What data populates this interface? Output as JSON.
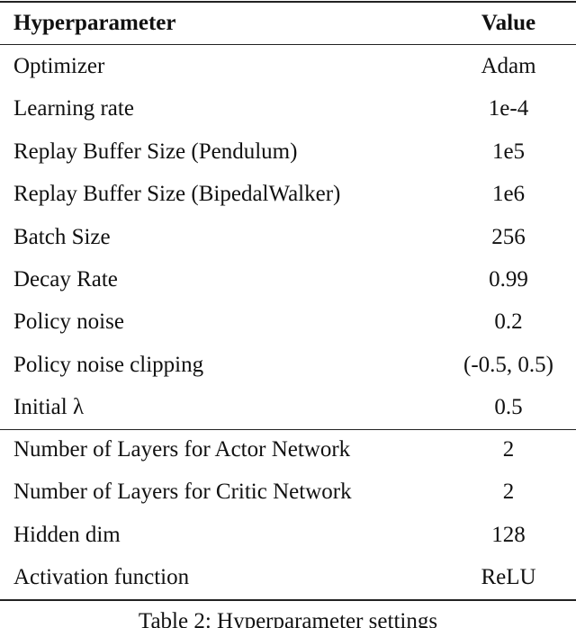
{
  "table": {
    "header": [
      "Hyperparameter",
      "Value"
    ],
    "groups": [
      [
        [
          "Optimizer",
          "Adam"
        ],
        [
          "Learning rate",
          "1e-4"
        ],
        [
          "Replay Buffer Size (Pendulum)",
          "1e5"
        ],
        [
          "Replay Buffer Size (BipedalWalker)",
          "1e6"
        ],
        [
          "Batch Size",
          "256"
        ],
        [
          "Decay Rate",
          "0.99"
        ],
        [
          "Policy noise",
          "0.2"
        ],
        [
          "Policy noise clipping",
          "(-0.5, 0.5)"
        ],
        [
          "Initial λ",
          "0.5"
        ]
      ],
      [
        [
          "Number of Layers for Actor Network",
          "2"
        ],
        [
          "Number of Layers for Critic Network",
          "2"
        ],
        [
          "Hidden dim",
          "128"
        ],
        [
          "Activation function",
          "ReLU"
        ]
      ]
    ]
  },
  "caption": "Table 2: Hyperparameter settings"
}
